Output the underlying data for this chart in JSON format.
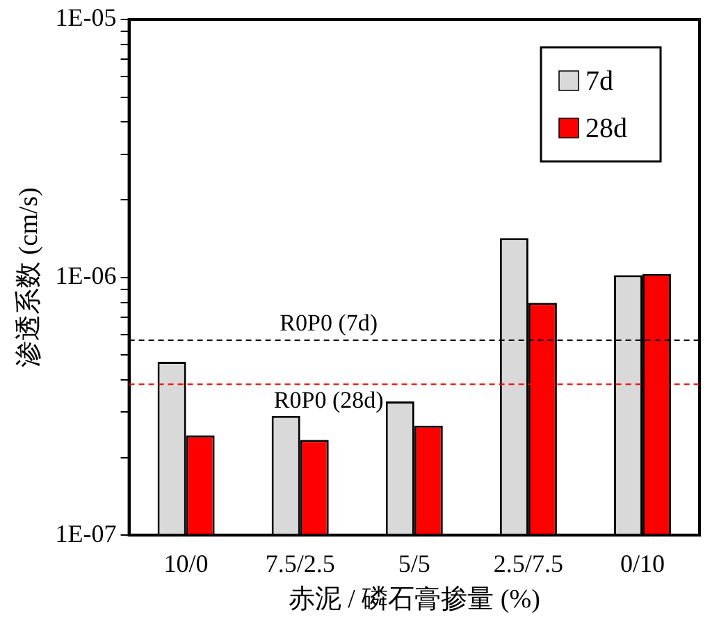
{
  "chart_data": {
    "type": "bar",
    "xlabel": "赤泥 / 磷石膏掺量 (%)",
    "ylabel": "渗透系数 (cm/s)",
    "categories": [
      "10/0",
      "7.5/2.5",
      "5/5",
      "2.5/7.5",
      "0/10"
    ],
    "series": [
      {
        "name": "7d",
        "color": "#d9d9d9",
        "values": [
          4.7e-07,
          2.9e-07,
          3.3e-07,
          1.42e-06,
          1.02e-06
        ]
      },
      {
        "name": "28d",
        "color": "#ff0000",
        "values": [
          2.44e-07,
          2.34e-07,
          2.66e-07,
          7.96e-07,
          1.03e-06
        ]
      }
    ],
    "log": true,
    "ylim": [
      1e-07,
      1e-05
    ],
    "yticks": [
      {
        "value": 1e-07,
        "label": "1E-07"
      },
      {
        "value": 2e-07,
        "label": null
      },
      {
        "value": 3e-07,
        "label": null
      },
      {
        "value": 4e-07,
        "label": null
      },
      {
        "value": 5e-07,
        "label": null
      },
      {
        "value": 6e-07,
        "label": null
      },
      {
        "value": 7e-07,
        "label": null
      },
      {
        "value": 8e-07,
        "label": null
      },
      {
        "value": 9e-07,
        "label": null
      },
      {
        "value": 1e-06,
        "label": "1E-06"
      },
      {
        "value": 2e-06,
        "label": null
      },
      {
        "value": 3e-06,
        "label": null
      },
      {
        "value": 4e-06,
        "label": null
      },
      {
        "value": 5e-06,
        "label": null
      },
      {
        "value": 6e-06,
        "label": null
      },
      {
        "value": 7e-06,
        "label": null
      },
      {
        "value": 8e-06,
        "label": null
      },
      {
        "value": 9e-06,
        "label": null
      },
      {
        "value": 1e-05,
        "label": "1E-05"
      }
    ],
    "ref_lines": [
      {
        "axis": "y",
        "value": 5.7e-07,
        "label": "R0P0 (7d)",
        "color": "#000000",
        "line_style": "dashed"
      },
      {
        "axis": "y",
        "value": 3.85e-07,
        "label": "R0P0 (28d)",
        "color": "#ff0000",
        "line_style": "dashed"
      }
    ],
    "grid": false,
    "legend": "top right"
  }
}
